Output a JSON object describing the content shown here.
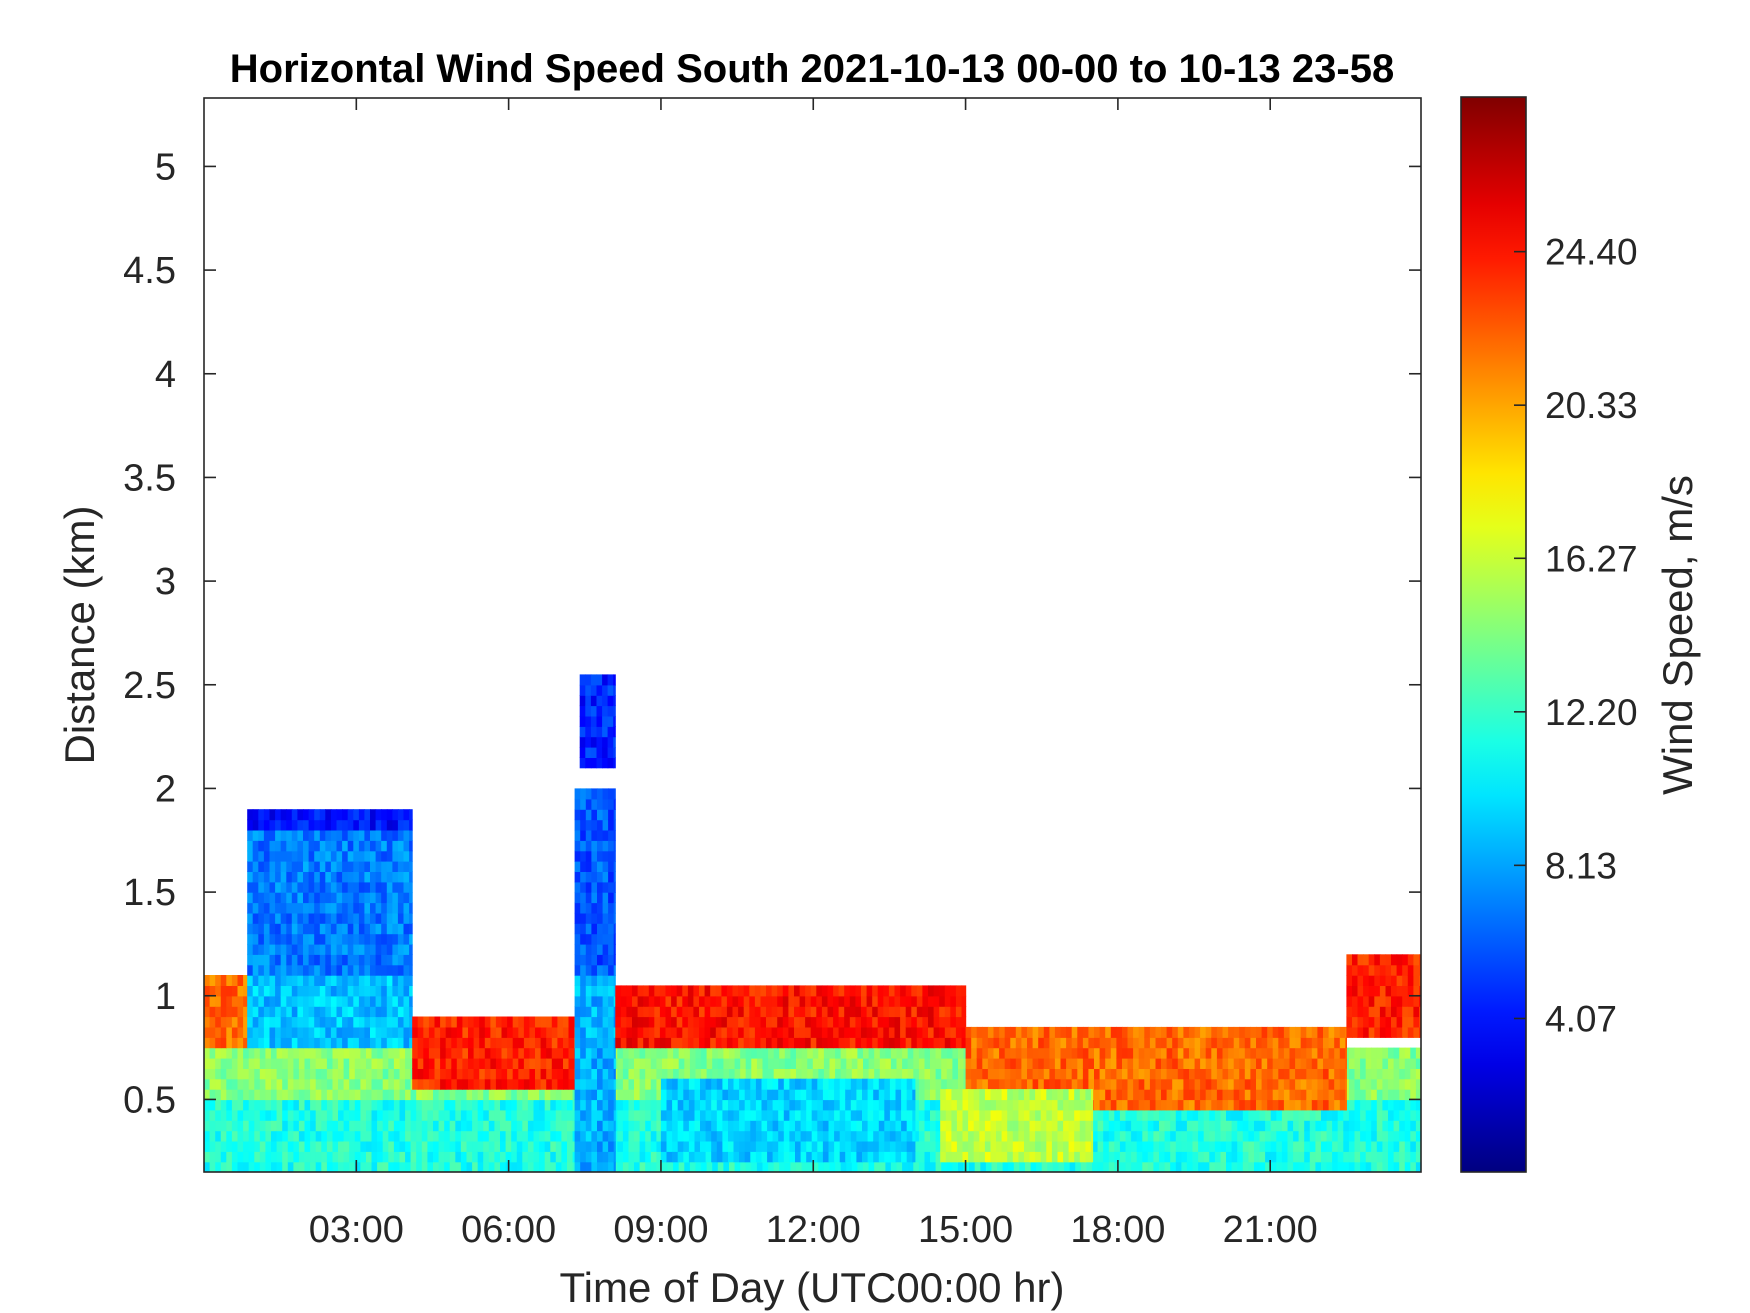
{
  "chart_data": {
    "type": "heatmap",
    "title": "Horizontal Wind Speed South 2021-10-13 00-00 to 10-13 23-58",
    "xlabel": "Time of Day (UTC00:00 hr)",
    "ylabel": "Distance (km)",
    "colorbar_label": "Wind Speed, m/s",
    "xlim": [
      0,
      23.97
    ],
    "ylim": [
      0.15,
      5.33
    ],
    "x_ticks": [
      {
        "value": 3,
        "label": "03:00"
      },
      {
        "value": 6,
        "label": "06:00"
      },
      {
        "value": 9,
        "label": "09:00"
      },
      {
        "value": 12,
        "label": "12:00"
      },
      {
        "value": 15,
        "label": "15:00"
      },
      {
        "value": 18,
        "label": "18:00"
      },
      {
        "value": 21,
        "label": "21:00"
      }
    ],
    "y_ticks": [
      {
        "value": 0.5,
        "label": "0.5"
      },
      {
        "value": 1,
        "label": "1"
      },
      {
        "value": 1.5,
        "label": "1.5"
      },
      {
        "value": 2,
        "label": "2"
      },
      {
        "value": 2.5,
        "label": "2.5"
      },
      {
        "value": 3,
        "label": "3"
      },
      {
        "value": 3.5,
        "label": "3.5"
      },
      {
        "value": 4,
        "label": "4"
      },
      {
        "value": 4.5,
        "label": "4.5"
      },
      {
        "value": 5,
        "label": "5"
      }
    ],
    "colorbar": {
      "colormap": "jet",
      "clim": [
        0,
        28.5
      ],
      "ticks": [
        {
          "value": 4.07,
          "label": "4.07"
        },
        {
          "value": 8.13,
          "label": "8.13"
        },
        {
          "value": 12.2,
          "label": "12.20"
        },
        {
          "value": 16.27,
          "label": "16.27"
        },
        {
          "value": 20.33,
          "label": "20.33"
        },
        {
          "value": 24.4,
          "label": "24.40"
        }
      ]
    },
    "regions": [
      {
        "x": [
          0,
          24
        ],
        "y": [
          0.15,
          0.5
        ],
        "value": 11.5
      },
      {
        "x": [
          0,
          24
        ],
        "y": [
          0.5,
          0.75
        ],
        "value": 14.5
      },
      {
        "x": [
          0,
          0.85
        ],
        "y": [
          0.75,
          1.1
        ],
        "value": 22
      },
      {
        "x": [
          0.85,
          4.1
        ],
        "y": [
          0.75,
          1.1
        ],
        "value": 9
      },
      {
        "x": [
          0.85,
          4.1
        ],
        "y": [
          1.1,
          1.8
        ],
        "value": 7
      },
      {
        "x": [
          0.85,
          4.1
        ],
        "y": [
          1.8,
          1.9
        ],
        "value": 4
      },
      {
        "x": [
          4.1,
          7.3
        ],
        "y": [
          0.55,
          0.9
        ],
        "value": 24
      },
      {
        "x": [
          7.3,
          8.1
        ],
        "y": [
          0.15,
          1.1
        ],
        "value": 8.5
      },
      {
        "x": [
          7.3,
          8.1
        ],
        "y": [
          1.1,
          2.0
        ],
        "value": 6
      },
      {
        "x": [
          7.4,
          8.1
        ],
        "y": [
          2.1,
          2.55
        ],
        "value": 4.5
      },
      {
        "x": [
          8.1,
          15
        ],
        "y": [
          0.75,
          1.05
        ],
        "value": 24.5
      },
      {
        "x": [
          15,
          22.5
        ],
        "y": [
          0.45,
          0.85
        ],
        "value": 22
      },
      {
        "x": [
          22.5,
          24
        ],
        "y": [
          0.8,
          1.2
        ],
        "value": 24
      },
      {
        "x": [
          9,
          14
        ],
        "y": [
          0.2,
          0.6
        ],
        "value": 9.5
      },
      {
        "x": [
          14.5,
          17.5
        ],
        "y": [
          0.2,
          0.55
        ],
        "value": 16
      }
    ]
  }
}
